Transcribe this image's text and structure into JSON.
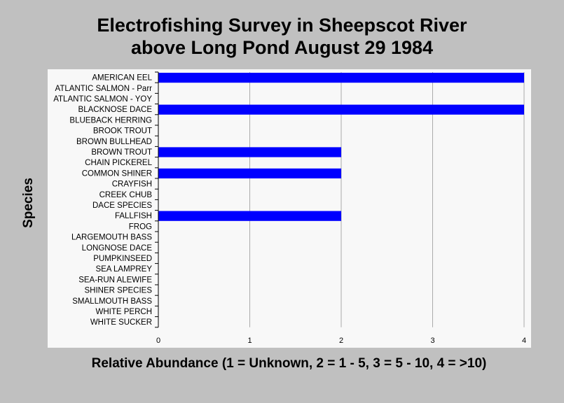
{
  "chart_data": {
    "type": "bar",
    "orientation": "horizontal",
    "title_lines": [
      "Electrofishing Survey in Sheepscot River",
      "above Long Pond August 29 1984"
    ],
    "ylabel": "Species",
    "xlabel": "Relative Abundance (1 = Unknown, 2 = 1 - 5, 3 = 5 - 10, 4 = >10)",
    "categories": [
      "AMERICAN EEL",
      "ATLANTIC SALMON - Parr",
      "ATLANTIC SALMON - YOY",
      "BLACKNOSE DACE",
      "BLUEBACK HERRING",
      "BROOK TROUT",
      "BROWN BULLHEAD",
      "BROWN TROUT",
      "CHAIN PICKEREL",
      "COMMON SHINER",
      "CRAYFISH",
      "CREEK CHUB",
      "DACE SPECIES",
      "FALLFISH",
      "FROG",
      "LARGEMOUTH BASS",
      "LONGNOSE DACE",
      "PUMPKINSEED",
      "SEA LAMPREY",
      "SEA-RUN ALEWIFE",
      "SHINER SPECIES",
      "SMALLMOUTH BASS",
      "WHITE PERCH",
      "WHITE SUCKER"
    ],
    "values": [
      4,
      0,
      0,
      4,
      0,
      0,
      0,
      2,
      0,
      2,
      0,
      0,
      0,
      2,
      0,
      0,
      0,
      0,
      0,
      0,
      0,
      0,
      0,
      0
    ],
    "xlim": [
      0,
      4
    ],
    "xticks": [
      "0",
      "1",
      "2",
      "3",
      "4"
    ],
    "grid": true,
    "bar_color": "#0000ff"
  }
}
